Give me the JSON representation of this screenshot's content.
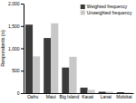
{
  "chart_data": {
    "type": "bar",
    "categories": [
      "Oahu",
      "Maui",
      "Big Island",
      "Kauai",
      "Lanai",
      "Molokai"
    ],
    "series": [
      {
        "name": "Weighted frequency",
        "color": "#3a3a3a",
        "values": [
          1530,
          1230,
          570,
          120,
          30,
          20
        ]
      },
      {
        "name": "Unweighted frequency",
        "color": "#c8c8c8",
        "values": [
          820,
          1560,
          810,
          70,
          30,
          15
        ]
      }
    ],
    "ylabel": "Respondents (n)",
    "ylim": [
      0,
      2000
    ],
    "yticks": [
      0,
      500,
      {
        "value": 1000,
        "label": "1,000"
      },
      {
        "value": 1500,
        "label": "1,500"
      },
      {
        "value": 2000,
        "label": "2,000"
      }
    ],
    "legend": "upper right",
    "grid": false
  }
}
